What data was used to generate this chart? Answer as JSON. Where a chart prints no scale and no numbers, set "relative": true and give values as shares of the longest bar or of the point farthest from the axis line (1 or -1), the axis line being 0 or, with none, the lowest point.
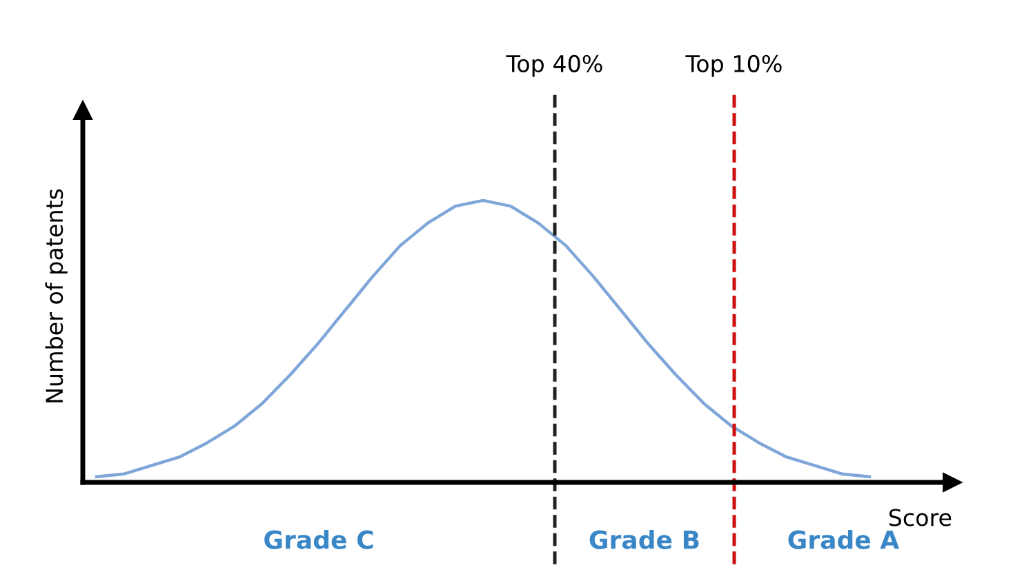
{
  "chart_data": {
    "type": "line",
    "relative": true,
    "xlabel": "Score",
    "ylabel": "Number of patents",
    "categories": [
      null,
      null,
      null,
      null,
      null,
      null,
      null,
      null,
      null,
      null,
      null,
      null,
      null,
      null,
      null,
      null,
      null,
      null,
      null,
      null,
      null,
      null,
      null,
      null,
      null,
      null,
      null,
      null,
      null
    ],
    "series": [
      {
        "color": "#7fa6d9",
        "values": [
          0.02,
          0.03,
          0.06,
          0.09,
          0.14,
          0.2,
          0.28,
          0.38,
          0.49,
          0.61,
          0.73,
          0.84,
          0.92,
          0.98,
          1,
          0.98,
          0.92,
          0.84,
          0.73,
          0.61,
          0.49,
          0.38,
          0.28,
          0.2,
          0.14,
          0.09,
          0.06,
          0.03,
          0.02
        ]
      }
    ],
    "annotations": [
      "Top 40%",
      "Top 10%",
      "Grade C",
      "Grade B",
      "Grade A"
    ],
    "grid": false,
    "marker": "none",
    "line_style": "solid"
  }
}
